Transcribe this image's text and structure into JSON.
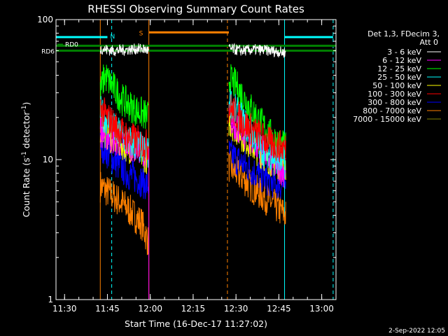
{
  "chart_data": {
    "type": "line",
    "title": "RHESSI Observing Summary Count Rates",
    "xlabel": "Start Time (16-Dec-17 11:27:02)",
    "ylabel_main": "Count Rate (s",
    "ylabel_sup1": "-1",
    "ylabel_mid": " detector",
    "ylabel_sup2": "-1",
    "ylabel_end": ")",
    "footer": "2-Sep-2022 12:05",
    "x_unit": "minutes after 11:27:02",
    "xlim": [
      0,
      98
    ],
    "ylim": [
      1,
      100
    ],
    "y_scale": "log",
    "background": "#000000",
    "x_ticks": [
      {
        "label": "11:30",
        "value": 3
      },
      {
        "label": "11:45",
        "value": 18
      },
      {
        "label": "12:00",
        "value": 33
      },
      {
        "label": "12:15",
        "value": 48
      },
      {
        "label": "12:30",
        "value": 63
      },
      {
        "label": "12:45",
        "value": 78
      },
      {
        "label": "13:00",
        "value": 93
      }
    ],
    "y_ticks": [
      {
        "label": "1",
        "value": 1
      },
      {
        "label": "10",
        "value": 10
      },
      {
        "label": "100",
        "value": 100
      }
    ],
    "legend": {
      "header": [
        "Det 1,3, FDecim 3,",
        "Att 0"
      ],
      "placement": "right",
      "entries": [
        {
          "label": "3 - 6 keV",
          "color": "#ffffff"
        },
        {
          "label": "6 - 12 keV",
          "color": "#ff00ff"
        },
        {
          "label": "12 - 25 keV",
          "color": "#00ff00"
        },
        {
          "label": "25 - 50 keV",
          "color": "#00ffff"
        },
        {
          "label": "50 - 100 keV",
          "color": "#ffff00"
        },
        {
          "label": "100 - 300 keV",
          "color": "#ff0000"
        },
        {
          "label": "300 - 800 keV",
          "color": "#0000ff"
        },
        {
          "label": "800 - 7000 keV",
          "color": "#ff8000"
        },
        {
          "label": "7000 - 15000 keV",
          "color": "#808000"
        }
      ]
    },
    "data_intervals": [
      [
        15.5,
        32.5
      ],
      [
        60.5,
        80.5
      ]
    ],
    "series": [
      {
        "name": "3 - 6 keV",
        "color": "#ffffff",
        "values": [
          [
            15.5,
            62
          ],
          [
            20,
            60
          ],
          [
            25,
            61
          ],
          [
            30,
            62
          ],
          [
            32.5,
            60
          ],
          [
            60.5,
            62
          ],
          [
            65,
            60
          ],
          [
            70,
            61
          ],
          [
            75,
            60
          ],
          [
            80.5,
            58
          ]
        ]
      },
      {
        "name": "12 - 25 keV",
        "color": "#00ff00",
        "values": [
          [
            15.5,
            30
          ],
          [
            17,
            40
          ],
          [
            20,
            33
          ],
          [
            23,
            27
          ],
          [
            26,
            24
          ],
          [
            29,
            22
          ],
          [
            32.5,
            20
          ],
          [
            60.5,
            38
          ],
          [
            63,
            34
          ],
          [
            66,
            27
          ],
          [
            69,
            22
          ],
          [
            72,
            18
          ],
          [
            75,
            15
          ],
          [
            78,
            13
          ],
          [
            80.5,
            12
          ]
        ]
      },
      {
        "name": "25 - 50 keV",
        "color": "#00ffff",
        "values": [
          [
            15.5,
            22
          ],
          [
            18,
            19
          ],
          [
            21,
            16
          ],
          [
            24,
            14
          ],
          [
            27,
            13
          ],
          [
            30,
            12
          ],
          [
            32.5,
            11
          ],
          [
            60.5,
            27
          ],
          [
            63,
            22
          ],
          [
            66,
            18
          ],
          [
            69,
            15
          ],
          [
            72,
            12
          ],
          [
            75,
            11
          ],
          [
            78,
            10
          ],
          [
            80.5,
            9.5
          ]
        ]
      },
      {
        "name": "6 - 12 keV",
        "color": "#ff00ff",
        "values": [
          [
            15.5,
            16
          ],
          [
            20,
            14
          ],
          [
            25,
            13
          ],
          [
            30,
            12
          ],
          [
            32.5,
            11
          ],
          [
            60.5,
            20
          ],
          [
            65,
            16
          ],
          [
            70,
            13
          ],
          [
            75,
            10
          ],
          [
            80.5,
            8
          ]
        ]
      },
      {
        "name": "50 - 100 keV",
        "color": "#ffff00",
        "values": [
          [
            15.5,
            17
          ],
          [
            20,
            14
          ],
          [
            25,
            12.5
          ],
          [
            30,
            11
          ],
          [
            32.5,
            10
          ],
          [
            60.5,
            19
          ],
          [
            65,
            15
          ],
          [
            70,
            12
          ],
          [
            75,
            10
          ],
          [
            80.5,
            9
          ]
        ]
      },
      {
        "name": "100 - 300 keV",
        "color": "#ff0000",
        "values": [
          [
            15.5,
            23
          ],
          [
            18,
            20
          ],
          [
            21,
            17
          ],
          [
            24,
            15
          ],
          [
            27,
            14
          ],
          [
            30,
            13
          ],
          [
            32.5,
            12.5
          ],
          [
            60.5,
            24
          ],
          [
            63,
            21
          ],
          [
            66,
            18
          ],
          [
            69,
            16
          ],
          [
            72,
            14.5
          ],
          [
            75,
            13
          ],
          [
            78,
            12.5
          ],
          [
            80.5,
            12
          ]
        ]
      },
      {
        "name": "300 - 800 keV",
        "color": "#0000ff",
        "values": [
          [
            15.5,
            13
          ],
          [
            20,
            10
          ],
          [
            25,
            8
          ],
          [
            30,
            7
          ],
          [
            32.5,
            6.5
          ],
          [
            60.5,
            11
          ],
          [
            65,
            9.5
          ],
          [
            70,
            8
          ],
          [
            75,
            7
          ],
          [
            80.5,
            6.5
          ]
        ]
      },
      {
        "name": "800 - 7000 keV",
        "color": "#ff8000",
        "values": [
          [
            15.5,
            6.5
          ],
          [
            20,
            5.5
          ],
          [
            25,
            4.5
          ],
          [
            30,
            3.5
          ],
          [
            32.5,
            2.5
          ],
          [
            60.5,
            9
          ],
          [
            65,
            7.5
          ],
          [
            70,
            6
          ],
          [
            75,
            5
          ],
          [
            80.5,
            4
          ]
        ]
      }
    ],
    "attenuator_lines": [
      {
        "label": "RD0",
        "color": "#008000",
        "y": 65,
        "segments": [
          [
            0,
            98
          ]
        ]
      },
      {
        "label": "RD6",
        "color": "#008000",
        "y": 60,
        "segments": [
          [
            0,
            98
          ]
        ]
      }
    ],
    "flag_bars": [
      {
        "label": "N",
        "color": "#00ffff",
        "y": 75,
        "segments": [
          [
            0,
            18
          ],
          [
            80,
            97
          ]
        ]
      },
      {
        "label": "S",
        "color": "#ff8000",
        "y": 81,
        "segments": [
          [
            32.5,
            60.5
          ]
        ]
      }
    ],
    "vertical_markers": [
      {
        "x": 0,
        "color": "#00ffff",
        "style": "solid"
      },
      {
        "x": 15.5,
        "color": "#ff8000",
        "style": "solid"
      },
      {
        "x": 19.5,
        "color": "#00ffff",
        "style": "dashed"
      },
      {
        "x": 32.5,
        "color": "#ff8000",
        "style": "solid"
      },
      {
        "x": 60,
        "color": "#ff8000",
        "style": "dashed"
      },
      {
        "x": 80,
        "color": "#00ffff",
        "style": "solid"
      },
      {
        "x": 97,
        "color": "#00ffff",
        "style": "dashed"
      }
    ]
  }
}
